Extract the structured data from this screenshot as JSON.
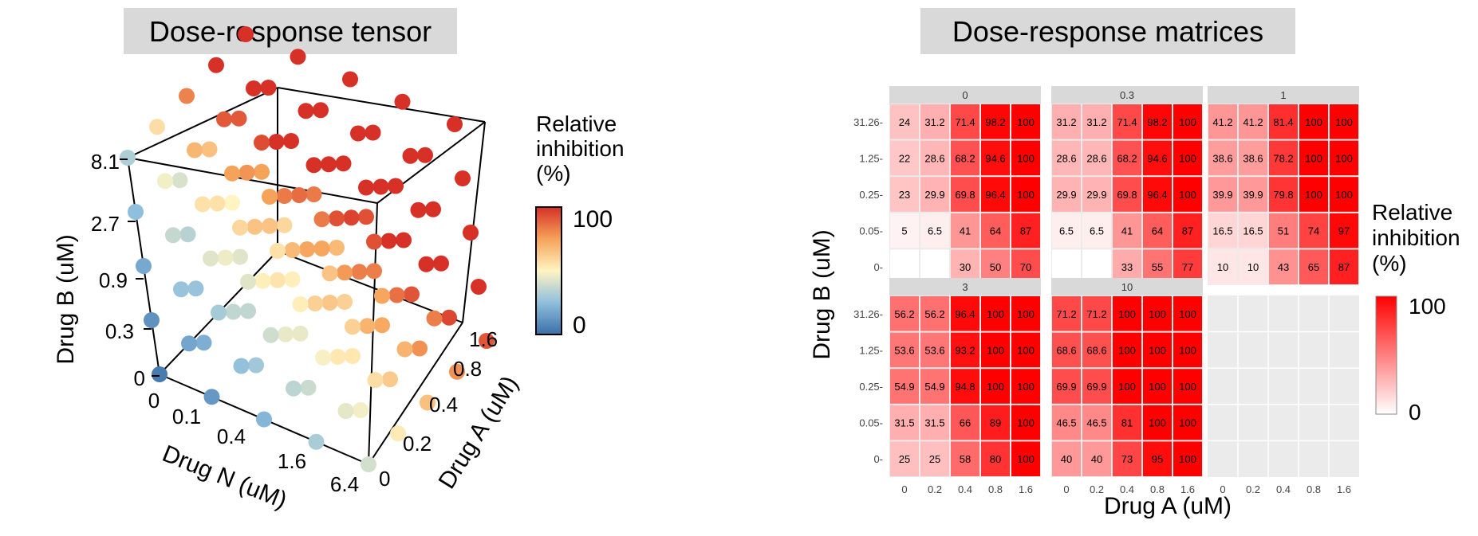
{
  "left_panel": {
    "title": "Dose-response tensor",
    "x_axis_label": "Drug N (uM)",
    "y_axis_label": "Drug B (uM)",
    "z_axis_label": "Drug A (uM)",
    "drugN_ticks": [
      "0",
      "0.1",
      "0.4",
      "1.6",
      "6.4"
    ],
    "drugB_ticks": [
      "0",
      "0.3",
      "0.9",
      "2.7",
      "8.1"
    ],
    "drugA_ticks": [
      "0",
      "0.2",
      "0.4",
      "0.8",
      "1.6"
    ],
    "legend": {
      "title_lines": [
        "Relative",
        "inhibition",
        "(%)"
      ],
      "max_label": "100",
      "min_label": "0"
    }
  },
  "right_panel": {
    "title": "Dose-response matrices",
    "x_axis_label": "Drug A (uM)",
    "y_axis_label": "Drug B (uM)",
    "x_ticks": [
      "0",
      "0.2",
      "0.4",
      "0.8",
      "1.6"
    ],
    "y_ticks": [
      "31.26",
      "1.25",
      "0.25",
      "0.05",
      "0"
    ],
    "legend": {
      "title_lines": [
        "Relative",
        "inhibition",
        "(%)"
      ],
      "max_label": "100",
      "min_label": "0"
    }
  },
  "colors": {
    "title_bg": "#d9d9d9",
    "strip_bg": "#d9d9d9",
    "panel_bg": "#ebebeb",
    "grid": "#ffffff",
    "heat_low": "#ffffff",
    "heat_high": "#ff0000",
    "diverging": [
      "#3a6ea8",
      "#8fbfdd",
      "#fff4c2",
      "#f6a35a",
      "#d63027"
    ]
  },
  "chart_data": [
    {
      "type": "scatter",
      "title": "Dose-response tensor",
      "xlabel": "Drug N (uM)",
      "ylabel": "Drug B (uM)",
      "zlabel": "Drug A (uM)",
      "drugN": [
        0,
        0.1,
        0.4,
        1.6,
        6.4
      ],
      "drugB": [
        0,
        0.3,
        0.9,
        2.7,
        8.1
      ],
      "drugA": [
        0,
        0.2,
        0.4,
        0.8,
        1.6
      ],
      "color_scale": {
        "min": 0,
        "max": 100,
        "label": "Relative inhibition (%)"
      },
      "note": "5x5x5 grid of doses; point color encodes relative inhibition"
    },
    {
      "type": "heatmap",
      "title": "Dose-response matrices",
      "xlabel": "Drug A (uM)",
      "ylabel": "Drug B (uM)",
      "x_categories": [
        "0",
        "0.2",
        "0.4",
        "0.8",
        "1.6"
      ],
      "y_categories": [
        "31.26",
        "1.25",
        "0.25",
        "0.05",
        "0"
      ],
      "color_scale": {
        "min": 0,
        "max": 100,
        "label": "Relative inhibition (%)"
      },
      "facets": [
        {
          "label": "0",
          "cells": [
            [
              "24",
              "31.2",
              "71.4",
              "98.2",
              "100"
            ],
            [
              "22",
              "28.6",
              "68.2",
              "94.6",
              "100"
            ],
            [
              "23",
              "29.9",
              "69.8",
              "96.4",
              "100"
            ],
            [
              "5",
              "6.5",
              "41",
              "64",
              "87"
            ],
            [
              "",
              "",
              "30",
              "50",
              "70"
            ]
          ]
        },
        {
          "label": "0.3",
          "cells": [
            [
              "31.2",
              "31.2",
              "71.4",
              "98.2",
              "100"
            ],
            [
              "28.6",
              "28.6",
              "68.2",
              "94.6",
              "100"
            ],
            [
              "29.9",
              "29.9",
              "69.8",
              "96.4",
              "100"
            ],
            [
              "6.5",
              "6.5",
              "41",
              "64",
              "87"
            ],
            [
              "",
              "",
              "33",
              "55",
              "77"
            ]
          ]
        },
        {
          "label": "1",
          "cells": [
            [
              "41.2",
              "41.2",
              "81.4",
              "100",
              "100"
            ],
            [
              "38.6",
              "38.6",
              "78.2",
              "100",
              "100"
            ],
            [
              "39.9",
              "39.9",
              "79.8",
              "100",
              "100"
            ],
            [
              "16.5",
              "16.5",
              "51",
              "74",
              "97"
            ],
            [
              "10",
              "10",
              "43",
              "65",
              "87"
            ]
          ]
        },
        {
          "label": "3",
          "cells": [
            [
              "56.2",
              "56.2",
              "96.4",
              "100",
              "100"
            ],
            [
              "53.6",
              "53.6",
              "93.2",
              "100",
              "100"
            ],
            [
              "54.9",
              "54.9",
              "94.8",
              "100",
              "100"
            ],
            [
              "31.5",
              "31.5",
              "66",
              "89",
              "100"
            ],
            [
              "25",
              "25",
              "58",
              "80",
              "100"
            ]
          ]
        },
        {
          "label": "10",
          "cells": [
            [
              "71.2",
              "71.2",
              "100",
              "100",
              "100"
            ],
            [
              "68.6",
              "68.6",
              "100",
              "100",
              "100"
            ],
            [
              "69.9",
              "69.9",
              "100",
              "100",
              "100"
            ],
            [
              "46.5",
              "46.5",
              "81",
              "100",
              "100"
            ],
            [
              "40",
              "40",
              "73",
              "95",
              "100"
            ]
          ]
        }
      ]
    }
  ]
}
